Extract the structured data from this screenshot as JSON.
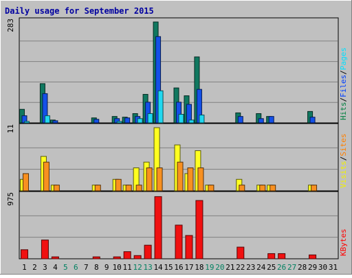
{
  "chart_data": [
    {
      "type": "bar",
      "title": "Daily usage for September 2015",
      "ymax_label": "283",
      "ylim": [
        0,
        283
      ],
      "categories": [
        "1",
        "2",
        "3",
        "4",
        "5",
        "6",
        "7",
        "8",
        "9",
        "10",
        "11",
        "12",
        "13",
        "14",
        "15",
        "16",
        "17",
        "18",
        "19",
        "20",
        "21",
        "22",
        "23",
        "24",
        "25",
        "26",
        "27",
        "28",
        "29",
        "30",
        "31"
      ],
      "weekend_days": [
        "5",
        "6",
        "12",
        "13",
        "19",
        "20",
        "26",
        "27"
      ],
      "side_legend": [
        {
          "label": "Hits",
          "color": "#008040"
        },
        {
          "label": "Files",
          "color": "#0040ff"
        },
        {
          "label": "Pages",
          "color": "#00e0ff"
        }
      ],
      "series": [
        {
          "name": "Hits",
          "color": "#107860",
          "values": [
            38,
            0,
            110,
            8,
            0,
            0,
            0,
            14,
            0,
            18,
            16,
            26,
            80,
            283,
            0,
            98,
            76,
            185,
            0,
            0,
            0,
            28,
            0,
            26,
            18,
            0,
            0,
            0,
            32,
            0,
            0
          ]
        },
        {
          "name": "Files",
          "color": "#1450e8",
          "values": [
            20,
            0,
            82,
            6,
            0,
            0,
            0,
            10,
            0,
            12,
            14,
            18,
            58,
            242,
            0,
            58,
            52,
            94,
            0,
            0,
            0,
            18,
            0,
            12,
            18,
            0,
            0,
            0,
            16,
            0,
            0
          ]
        },
        {
          "name": "Pages",
          "color": "#20d8f0",
          "values": [
            4,
            0,
            20,
            0,
            0,
            0,
            0,
            0,
            0,
            4,
            0,
            12,
            26,
            90,
            0,
            24,
            8,
            22,
            0,
            0,
            0,
            0,
            0,
            0,
            0,
            0,
            0,
            0,
            0,
            0,
            0
          ]
        }
      ]
    },
    {
      "type": "bar",
      "ymax_label": "11",
      "ylim": [
        0,
        11
      ],
      "categories": [
        "1",
        "2",
        "3",
        "4",
        "5",
        "6",
        "7",
        "8",
        "9",
        "10",
        "11",
        "12",
        "13",
        "14",
        "15",
        "16",
        "17",
        "18",
        "19",
        "20",
        "21",
        "22",
        "23",
        "24",
        "25",
        "26",
        "27",
        "28",
        "29",
        "30",
        "31"
      ],
      "side_legend": [
        {
          "label": "Visits",
          "color": "#f0f000"
        },
        {
          "label": "Sites",
          "color": "#ff8000"
        }
      ],
      "series": [
        {
          "name": "Visits",
          "color": "#ffff20",
          "values": [
            2,
            0,
            6,
            1,
            0,
            0,
            0,
            1,
            0,
            2,
            1,
            4,
            5,
            11,
            0,
            8,
            3,
            7,
            1,
            0,
            0,
            2,
            0,
            1,
            1,
            0,
            0,
            0,
            1,
            0,
            0
          ]
        },
        {
          "name": "Sites",
          "color": "#f89020",
          "values": [
            3,
            0,
            5,
            1,
            0,
            0,
            0,
            1,
            0,
            2,
            1,
            1,
            4,
            4,
            0,
            5,
            4,
            4,
            1,
            0,
            0,
            1,
            0,
            1,
            1,
            0,
            0,
            0,
            1,
            0,
            0
          ]
        }
      ]
    },
    {
      "type": "bar",
      "ymax_label": "975",
      "ylim": [
        0,
        975
      ],
      "categories": [
        "1",
        "2",
        "3",
        "4",
        "5",
        "6",
        "7",
        "8",
        "9",
        "10",
        "11",
        "12",
        "13",
        "14",
        "15",
        "16",
        "17",
        "18",
        "19",
        "20",
        "21",
        "22",
        "23",
        "24",
        "25",
        "26",
        "27",
        "28",
        "29",
        "30",
        "31"
      ],
      "side_legend": [
        {
          "label": "KBytes",
          "color": "#ff0000"
        }
      ],
      "series": [
        {
          "name": "KBytes",
          "color": "#f01010",
          "values": [
            140,
            0,
            290,
            30,
            0,
            0,
            0,
            30,
            0,
            30,
            110,
            50,
            210,
            960,
            0,
            520,
            360,
            900,
            0,
            0,
            0,
            180,
            0,
            0,
            80,
            80,
            0,
            0,
            60,
            0,
            0
          ]
        }
      ]
    }
  ]
}
